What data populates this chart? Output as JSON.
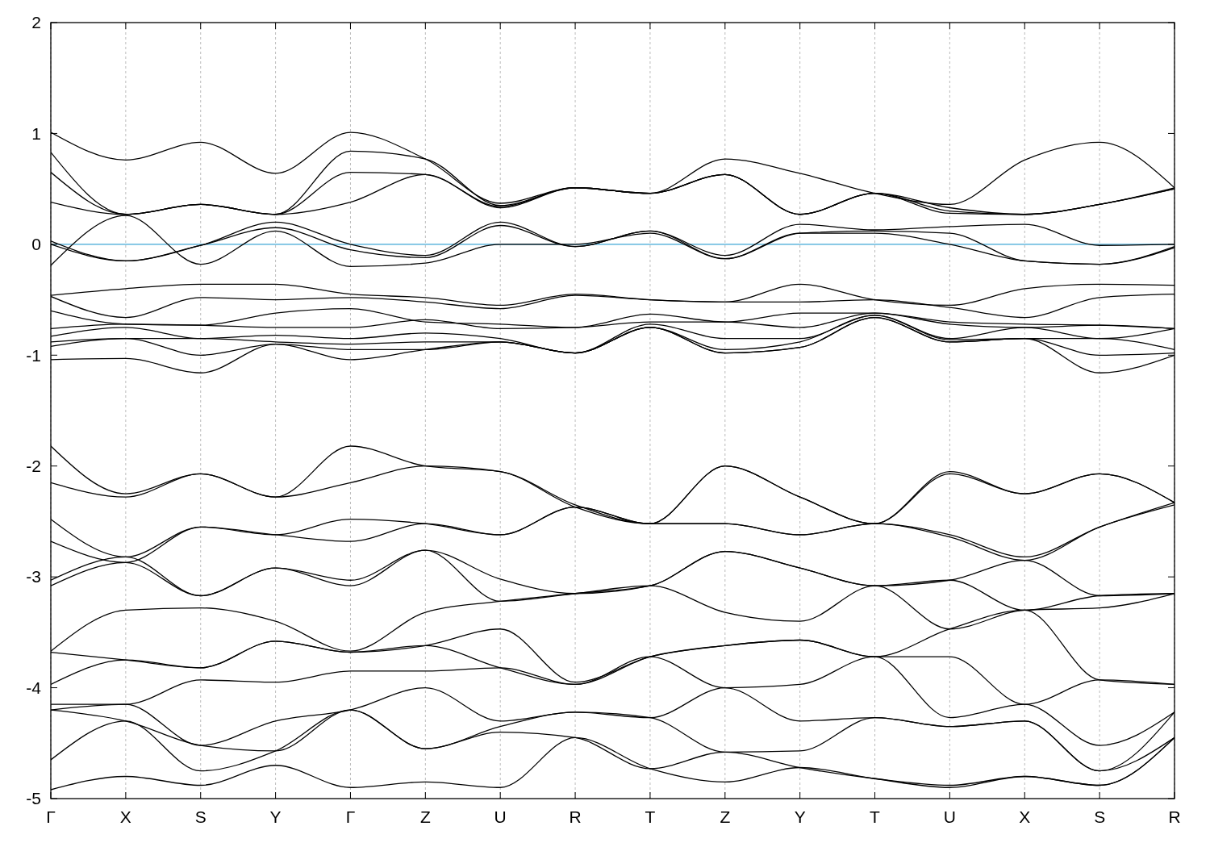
{
  "chart_data": {
    "type": "line",
    "categories": [
      "Γ",
      "X",
      "S",
      "Y",
      "Γ",
      "Z",
      "U",
      "R",
      "T",
      "Z",
      "Y",
      "T",
      "U",
      "X",
      "S",
      "R"
    ],
    "ylim": [
      -5,
      2
    ],
    "yticks": [
      -5,
      -4,
      -3,
      -2,
      -1,
      0,
      1,
      2
    ],
    "grid": "x",
    "ref_lines": [
      {
        "axis": "y",
        "value": 0,
        "color": "#3fa7d6"
      }
    ],
    "series": [
      {
        "color": "#000000",
        "values": [
          1.01,
          0.76,
          0.92,
          0.64,
          1.01,
          0.77,
          0.37,
          0.51,
          0.46,
          0.77,
          0.64,
          0.46,
          0.36,
          0.76,
          0.92,
          0.51
        ]
      },
      {
        "color": "#000000",
        "values": [
          0.83,
          0.27,
          0.36,
          0.27,
          0.84,
          0.77,
          0.35,
          0.51,
          0.46,
          0.63,
          0.27,
          0.46,
          0.33,
          0.27,
          0.36,
          0.51
        ]
      },
      {
        "color": "#000000",
        "values": [
          0.65,
          0.27,
          0.36,
          0.27,
          0.65,
          0.63,
          0.34,
          0.51,
          0.46,
          0.63,
          0.27,
          0.46,
          0.3,
          0.27,
          0.36,
          0.5
        ]
      },
      {
        "color": "#000000",
        "values": [
          0.38,
          0.27,
          0.36,
          0.27,
          0.38,
          0.63,
          0.33,
          0.51,
          0.46,
          0.63,
          0.27,
          0.46,
          0.28,
          0.27,
          0.36,
          0.5
        ]
      },
      {
        "color": "#000000",
        "values": [
          0.03,
          -0.15,
          -0.01,
          0.2,
          0.0,
          -0.1,
          0.2,
          -0.02,
          0.12,
          -0.1,
          0.18,
          0.13,
          0.16,
          0.18,
          -0.01,
          0.0
        ]
      },
      {
        "color": "#000000",
        "values": [
          0.0,
          -0.15,
          -0.01,
          0.15,
          -0.05,
          -0.12,
          0.17,
          -0.02,
          0.12,
          -0.13,
          0.1,
          0.12,
          0.1,
          -0.15,
          -0.18,
          -0.02
        ]
      },
      {
        "color": "#000000",
        "values": [
          -0.19,
          0.26,
          -0.18,
          0.12,
          -0.2,
          -0.17,
          0.0,
          0.0,
          0.1,
          -0.13,
          0.1,
          0.1,
          0.0,
          -0.15,
          -0.18,
          -0.03
        ]
      },
      {
        "color": "#000000",
        "values": [
          -0.46,
          -0.4,
          -0.36,
          -0.36,
          -0.45,
          -0.48,
          -0.55,
          -0.45,
          -0.5,
          -0.52,
          -0.36,
          -0.5,
          -0.55,
          -0.4,
          -0.36,
          -0.37
        ]
      },
      {
        "color": "#000000",
        "values": [
          -0.47,
          -0.66,
          -0.48,
          -0.5,
          -0.48,
          -0.52,
          -0.58,
          -0.46,
          -0.5,
          -0.52,
          -0.52,
          -0.5,
          -0.57,
          -0.66,
          -0.48,
          -0.45
        ]
      },
      {
        "color": "#000000",
        "values": [
          -0.6,
          -0.72,
          -0.73,
          -0.62,
          -0.58,
          -0.7,
          -0.72,
          -0.75,
          -0.63,
          -0.7,
          -0.62,
          -0.62,
          -0.7,
          -0.72,
          -0.73,
          -0.76
        ]
      },
      {
        "color": "#000000",
        "values": [
          -0.76,
          -0.72,
          -0.73,
          -0.75,
          -0.75,
          -0.68,
          -0.76,
          -0.75,
          -0.7,
          -0.7,
          -0.75,
          -0.62,
          -0.72,
          -0.75,
          -0.73,
          -0.76
        ]
      },
      {
        "color": "#000000",
        "values": [
          -0.83,
          -0.75,
          -0.85,
          -0.82,
          -0.85,
          -0.8,
          -0.85,
          -0.98,
          -0.72,
          -0.85,
          -0.85,
          -0.64,
          -0.85,
          -0.75,
          -0.85,
          -0.76
        ]
      },
      {
        "color": "#000000",
        "values": [
          -0.88,
          -0.85,
          -0.85,
          -0.88,
          -0.9,
          -0.88,
          -0.88,
          -0.98,
          -0.75,
          -0.95,
          -0.88,
          -0.64,
          -0.86,
          -0.85,
          -0.85,
          -0.95
        ]
      },
      {
        "color": "#000000",
        "values": [
          -0.92,
          -0.85,
          -1.0,
          -0.9,
          -0.95,
          -0.95,
          -0.88,
          -0.98,
          -0.75,
          -0.98,
          -0.93,
          -0.66,
          -0.88,
          -0.85,
          -1.0,
          -0.98
        ]
      },
      {
        "color": "#000000",
        "values": [
          -1.04,
          -1.03,
          -1.16,
          -0.9,
          -1.04,
          -0.95,
          -0.88,
          -0.98,
          -0.75,
          -0.98,
          -0.93,
          -0.66,
          -0.88,
          -0.85,
          -1.16,
          -1.0
        ]
      },
      {
        "color": "#000000",
        "values": [
          -1.82,
          -2.25,
          -2.07,
          -2.28,
          -1.82,
          -2.0,
          -2.05,
          -2.35,
          -2.52,
          -2.0,
          -2.28,
          -2.52,
          -2.05,
          -2.25,
          -2.07,
          -2.33
        ]
      },
      {
        "color": "#000000",
        "values": [
          -2.15,
          -2.28,
          -2.07,
          -2.28,
          -2.15,
          -2.0,
          -2.05,
          -2.37,
          -2.52,
          -2.0,
          -2.28,
          -2.52,
          -2.07,
          -2.25,
          -2.07,
          -2.33
        ]
      },
      {
        "color": "#000000",
        "values": [
          -2.48,
          -2.82,
          -2.55,
          -2.62,
          -2.48,
          -2.52,
          -2.62,
          -2.37,
          -2.52,
          -2.52,
          -2.62,
          -2.52,
          -2.62,
          -2.82,
          -2.55,
          -2.33
        ]
      },
      {
        "color": "#000000",
        "values": [
          -2.68,
          -2.87,
          -2.55,
          -2.62,
          -2.68,
          -2.52,
          -2.62,
          -2.37,
          -2.52,
          -2.52,
          -2.62,
          -2.52,
          -2.64,
          -2.85,
          -2.55,
          -2.35
        ]
      },
      {
        "color": "#000000",
        "values": [
          -3.03,
          -2.82,
          -3.17,
          -2.92,
          -3.03,
          -2.76,
          -3.02,
          -3.15,
          -3.08,
          -2.77,
          -2.92,
          -3.08,
          -3.03,
          -2.85,
          -3.17,
          -3.15
        ]
      },
      {
        "color": "#000000",
        "values": [
          -3.08,
          -2.87,
          -3.17,
          -2.92,
          -3.08,
          -2.76,
          -3.22,
          -3.15,
          -3.08,
          -2.77,
          -2.92,
          -3.08,
          -3.03,
          -3.3,
          -3.17,
          -3.15
        ]
      },
      {
        "color": "#000000",
        "values": [
          -3.67,
          -3.3,
          -3.28,
          -3.4,
          -3.67,
          -3.32,
          -3.22,
          -3.15,
          -3.08,
          -3.32,
          -3.4,
          -3.08,
          -3.47,
          -3.3,
          -3.28,
          -3.15
        ]
      },
      {
        "color": "#000000",
        "values": [
          -3.68,
          -3.75,
          -3.82,
          -3.58,
          -3.68,
          -3.62,
          -3.47,
          -3.95,
          -3.72,
          -3.62,
          -3.57,
          -3.72,
          -3.47,
          -3.3,
          -3.93,
          -3.97
        ]
      },
      {
        "color": "#000000",
        "values": [
          -3.97,
          -3.75,
          -3.82,
          -3.58,
          -3.68,
          -3.62,
          -3.82,
          -3.97,
          -3.72,
          -3.62,
          -3.57,
          -3.72,
          -3.72,
          -4.15,
          -3.93,
          -3.97
        ]
      },
      {
        "color": "#000000",
        "values": [
          -4.15,
          -4.15,
          -3.93,
          -3.95,
          -3.85,
          -3.85,
          -3.82,
          -3.97,
          -3.72,
          -4.0,
          -3.97,
          -3.72,
          -4.27,
          -4.15,
          -4.52,
          -4.22
        ]
      },
      {
        "color": "#000000",
        "values": [
          -4.2,
          -4.15,
          -4.52,
          -4.3,
          -4.2,
          -4.0,
          -4.3,
          -4.22,
          -4.27,
          -4.0,
          -4.3,
          -4.27,
          -4.35,
          -4.3,
          -4.75,
          -4.22
        ]
      },
      {
        "color": "#000000",
        "values": [
          -4.2,
          -4.3,
          -4.52,
          -4.57,
          -4.2,
          -4.55,
          -4.35,
          -4.22,
          -4.27,
          -4.58,
          -4.57,
          -4.27,
          -4.35,
          -4.3,
          -4.75,
          -4.45
        ]
      },
      {
        "color": "#000000",
        "values": [
          -4.65,
          -4.3,
          -4.75,
          -4.57,
          -4.2,
          -4.55,
          -4.4,
          -4.45,
          -4.73,
          -4.58,
          -4.72,
          -4.82,
          -4.88,
          -4.8,
          -4.88,
          -4.45
        ]
      },
      {
        "color": "#000000",
        "values": [
          -4.92,
          -4.8,
          -4.88,
          -4.7,
          -4.9,
          -4.85,
          -4.9,
          -4.45,
          -4.73,
          -4.85,
          -4.72,
          -4.82,
          -4.9,
          -4.8,
          -4.88,
          -4.45
        ]
      }
    ]
  }
}
